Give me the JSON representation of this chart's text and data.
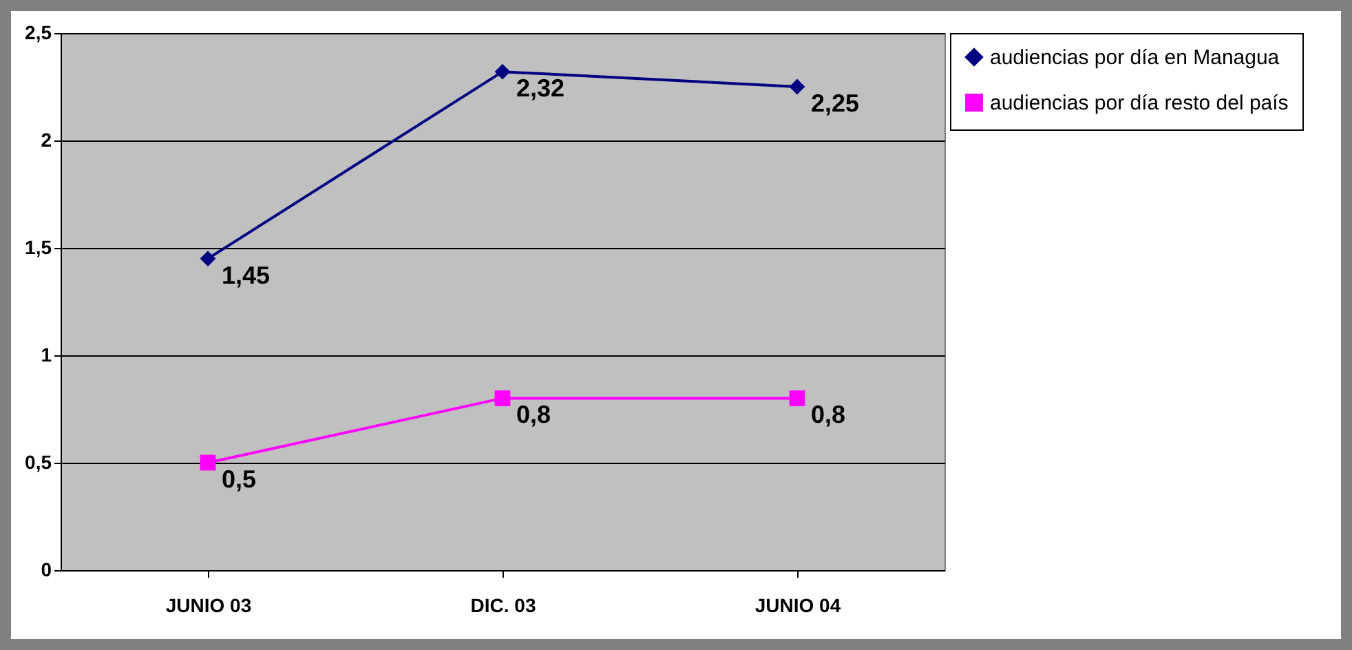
{
  "chart_data": {
    "type": "line",
    "categories": [
      "JUNIO 03",
      "DIC. 03",
      "JUNIO 04"
    ],
    "series": [
      {
        "name": "audiencias por día en Managua",
        "color": "#000080",
        "marker": "diamond",
        "values": [
          1.45,
          2.32,
          2.25
        ],
        "value_labels": [
          "1,45",
          "2,32",
          "2,25"
        ]
      },
      {
        "name": "audiencias por día resto del país",
        "color": "#ff00ff",
        "marker": "square",
        "values": [
          0.5,
          0.8,
          0.8
        ],
        "value_labels": [
          "0,5",
          "0,8",
          "0,8"
        ]
      }
    ],
    "ylim": [
      0,
      2.5
    ],
    "yticks": [
      0,
      {
        "value": 0.5,
        "label": "0,5"
      },
      1,
      {
        "value": 1.5,
        "label": "1,5"
      },
      2,
      {
        "value": 2.5,
        "label": "2,5"
      }
    ],
    "grid": "y",
    "legend": "right"
  }
}
